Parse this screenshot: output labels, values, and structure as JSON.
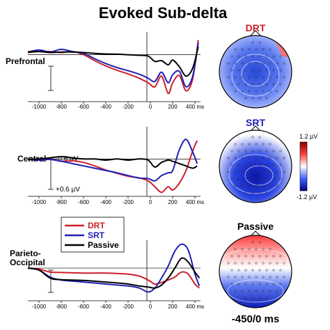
{
  "figure": {
    "title": "Evoked Sub-delta",
    "scale": {
      "neg_label": "-0.6 µV",
      "pos_label": "+0.6 µV"
    },
    "colorbar": {
      "max_label": "1.2 µV",
      "min_label": "-1.2 µV",
      "colors": [
        "#8b0000",
        "#ff4040",
        "#ffffff",
        "#4060ff",
        "#00008b"
      ]
    },
    "footer": "-450/0 ms"
  },
  "legend": [
    {
      "name": "DRT",
      "color": "#cc1f2a"
    },
    {
      "name": "SRT",
      "color": "#1f1fb4"
    },
    {
      "name": "Passive",
      "color": "#000000"
    }
  ],
  "maps": [
    {
      "label": "DRT",
      "label_color": "#cc1f2a"
    },
    {
      "label": "SRT",
      "label_color": "#1f1fb4"
    },
    {
      "label": "Passive",
      "label_color": "#000000"
    }
  ],
  "chart_data": [
    {
      "type": "line",
      "title": "Prefrontal",
      "x_ticks": [
        -1000,
        -800,
        -600,
        -400,
        -200,
        0,
        200,
        400
      ],
      "x_tick_labels": [
        "-1000",
        "-800",
        "-600",
        "-400",
        "-200",
        "0",
        "200",
        "400 ms"
      ],
      "xlim": [
        -1100,
        450
      ],
      "ylim": [
        -0.85,
        1.6
      ],
      "y_inverted": true,
      "series": [
        {
          "name": "DRT",
          "color": "#cc1f2a",
          "x": [
            -1100,
            -1000,
            -900,
            -800,
            -700,
            -600,
            -500,
            -400,
            -300,
            -200,
            -100,
            -20,
            40,
            100,
            160,
            200,
            260,
            320,
            380,
            430
          ],
          "y": [
            -0.08,
            -0.12,
            -0.12,
            -0.08,
            -0.12,
            0.0,
            0.22,
            0.42,
            0.58,
            0.72,
            0.88,
            1.05,
            1.2,
            0.8,
            1.45,
            1.05,
            0.78,
            1.35,
            0.9,
            -0.55
          ]
        },
        {
          "name": "SRT",
          "color": "#1f1fb4",
          "x": [
            -1100,
            -1000,
            -900,
            -800,
            -700,
            -600,
            -500,
            -400,
            -300,
            -200,
            -100,
            -20,
            40,
            100,
            160,
            200,
            260,
            320,
            380,
            430
          ],
          "y": [
            -0.1,
            -0.18,
            -0.1,
            -0.2,
            -0.12,
            -0.05,
            0.15,
            0.33,
            0.48,
            0.6,
            0.73,
            0.88,
            1.0,
            0.65,
            1.05,
            0.75,
            0.62,
            1.2,
            0.8,
            -0.45
          ]
        },
        {
          "name": "Passive",
          "color": "#000000",
          "x": [
            -1100,
            -1000,
            -900,
            -800,
            -700,
            -600,
            -500,
            -400,
            -300,
            -200,
            -100,
            -20,
            40,
            100,
            160,
            200,
            260,
            320,
            380,
            430
          ],
          "y": [
            -0.1,
            -0.12,
            -0.08,
            -0.1,
            -0.1,
            -0.08,
            -0.05,
            -0.03,
            -0.02,
            0.0,
            0.02,
            0.05,
            0.25,
            0.22,
            0.38,
            0.2,
            0.45,
            0.8,
            0.5,
            -0.3
          ]
        }
      ]
    },
    {
      "type": "line",
      "title": "Central",
      "x_ticks": [
        -1000,
        -800,
        -600,
        -400,
        -200,
        0,
        200,
        400
      ],
      "x_tick_labels": [
        "-1000",
        "-800",
        "-600",
        "-400",
        "-200",
        "0",
        "200",
        "400 ms"
      ],
      "xlim": [
        -1100,
        450
      ],
      "ylim": [
        -1.4,
        1.5
      ],
      "y_inverted": true,
      "series": [
        {
          "name": "DRT",
          "color": "#cc1f2a",
          "x": [
            -1100,
            -1000,
            -900,
            -800,
            -700,
            -600,
            -500,
            -400,
            -300,
            -200,
            -100,
            -20,
            40,
            100,
            160,
            200,
            260,
            320,
            380,
            420
          ],
          "y": [
            0.0,
            0.05,
            0.0,
            0.1,
            0.08,
            0.15,
            0.3,
            0.48,
            0.62,
            0.75,
            0.82,
            0.95,
            1.2,
            1.45,
            1.2,
            1.35,
            1.05,
            0.5,
            -0.35,
            -0.8
          ]
        },
        {
          "name": "SRT",
          "color": "#1f1fb4",
          "x": [
            -1100,
            -1000,
            -900,
            -800,
            -700,
            -600,
            -500,
            -400,
            -300,
            -200,
            -100,
            -20,
            40,
            100,
            160,
            200,
            260,
            320,
            380,
            420
          ],
          "y": [
            0.02,
            0.05,
            0.02,
            0.1,
            0.2,
            0.3,
            0.4,
            0.5,
            0.6,
            0.72,
            0.83,
            0.85,
            0.95,
            0.72,
            0.6,
            0.5,
            -0.4,
            -0.85,
            -0.3,
            0.2
          ]
        },
        {
          "name": "Passive",
          "color": "#000000",
          "x": [
            -1100,
            -1000,
            -900,
            -800,
            -700,
            -600,
            -500,
            -400,
            -300,
            -200,
            -100,
            -20,
            40,
            100,
            160,
            200,
            260,
            320,
            380,
            420
          ],
          "y": [
            0.02,
            0.0,
            -0.05,
            -0.1,
            -0.05,
            0.0,
            0.0,
            0.05,
            0.0,
            0.05,
            0.0,
            0.05,
            0.35,
            0.15,
            0.05,
            0.1,
            0.2,
            0.3,
            0.4,
            0.3
          ]
        }
      ]
    },
    {
      "type": "line",
      "title": "Parieto-\nOccipital",
      "x_ticks": [
        -1000,
        -800,
        -600,
        -400,
        -200,
        0,
        200,
        400
      ],
      "x_tick_labels": [
        "-1000",
        "-800",
        "-600",
        "-400",
        "-200",
        "0",
        "200",
        "400 ms"
      ],
      "xlim": [
        -1100,
        450
      ],
      "ylim": [
        -1.4,
        1.5
      ],
      "y_inverted": true,
      "series": [
        {
          "name": "DRT",
          "color": "#cc1f2a",
          "x": [
            -1100,
            -1000,
            -900,
            -800,
            -600,
            -400,
            -200,
            -100,
            -20,
            40,
            100,
            160,
            220,
            280,
            340,
            400,
            440
          ],
          "y": [
            0.0,
            0.05,
            0.2,
            0.22,
            0.25,
            0.25,
            0.3,
            0.4,
            0.6,
            0.8,
            0.72,
            0.6,
            0.45,
            0.2,
            0.3,
            0.8,
            1.0
          ]
        },
        {
          "name": "SRT",
          "color": "#1f1fb4",
          "x": [
            -1100,
            -1000,
            -900,
            -800,
            -600,
            -400,
            -200,
            -100,
            -20,
            40,
            100,
            160,
            220,
            280,
            340,
            400,
            440
          ],
          "y": [
            0.0,
            0.1,
            0.45,
            0.6,
            0.7,
            0.8,
            0.9,
            1.0,
            1.2,
            1.0,
            0.5,
            -0.1,
            -0.85,
            -1.2,
            -0.9,
            0.3,
            0.9
          ]
        },
        {
          "name": "Passive",
          "color": "#000000",
          "x": [
            -1100,
            -1000,
            -900,
            -800,
            -600,
            -400,
            -200,
            -100,
            -20,
            40,
            100,
            160,
            220,
            280,
            340,
            400,
            440
          ],
          "y": [
            0.0,
            0.1,
            0.5,
            0.58,
            0.62,
            0.7,
            0.8,
            0.9,
            0.95,
            1.0,
            0.85,
            0.5,
            0.0,
            -0.5,
            -0.3,
            0.2,
            0.5
          ]
        }
      ]
    }
  ]
}
